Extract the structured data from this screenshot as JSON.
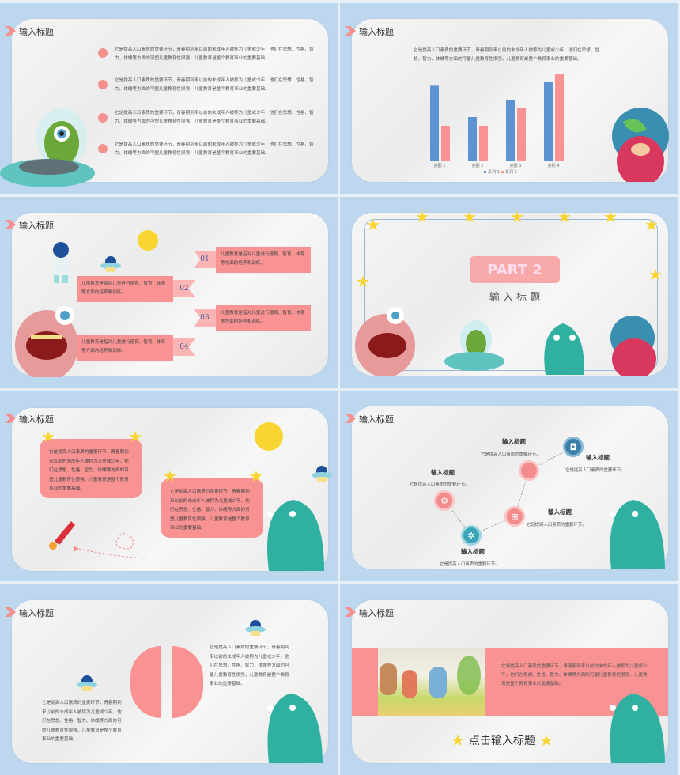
{
  "section_title": "输入标题",
  "body_long": "它是提高人口素质的重要环节，青春期到来以前的未成年人被称为儿童或少年，他们在思想、性格、智力、体魄等方面的可塑儿童教育性很强，儿童教育是整个教育事业的重要基础。",
  "body_short": "儿童教育是指对儿童进行德育、智育、体育等方面的培养和训练。",
  "node_desc": "它是提高人口素质的重要环节。",
  "slide1": {
    "bullets": [
      "它是提高人口素质的重要环节，青春期到来以前的未成年人被称为儿童或少年，他们在思想、性格、智力、体魄等方面的可塑儿童教育性很强，儿童教育是整个教育事业的重要基础。",
      "它是提高人口素质的重要环节，青春期到来以前的未成年人被称为儿童或少年，他们在思想、性格、智力、体魄等方面的可塑儿童教育性很强，儿童教育是整个教育事业的重要基础。",
      "它是提高人口素质的重要环节，青春期到来以前的未成年人被称为儿童或少年，他们在思想、性格、智力、体魄等方面的可塑儿童教育性很强，儿童教育是整个教育事业的重要基础。",
      "它是提高人口素质的重要环节，青春期到来以前的未成年人被称为儿童或少年，他们在思想、性格、智力、体魄等方面的可塑儿童教育性很强，儿童教育是整个教育事业的重要基础。"
    ]
  },
  "chart_data": {
    "type": "bar",
    "categories": [
      "类别 1",
      "类别 2",
      "类别 3",
      "类别 4"
    ],
    "series": [
      {
        "name": "系列 1",
        "values": [
          4.3,
          2.5,
          3.5,
          4.5
        ],
        "color": "#5b93d3"
      },
      {
        "name": "系列 2",
        "values": [
          2.0,
          2.0,
          3.0,
          5.0
        ],
        "color": "#f99393"
      }
    ],
    "ylim": [
      0,
      5
    ],
    "grid": false,
    "legend": "bottom"
  },
  "slide3": {
    "numbers": [
      "01",
      "02",
      "03",
      "04"
    ]
  },
  "slide4": {
    "part": "PART 2",
    "title": "输 入 标 题"
  },
  "slide6": {
    "node_title": "输入标题",
    "icons": [
      "gear-icon",
      "apple-icon",
      "instagram-icon",
      "windows-icon",
      "aperture-icon"
    ]
  },
  "slide8": {
    "cta": "点击输入标题"
  },
  "colors": {
    "background": "#bdd7ee",
    "accent_pink": "#f99393",
    "accent_blue": "#5b93d3",
    "star": "#f8d531"
  }
}
